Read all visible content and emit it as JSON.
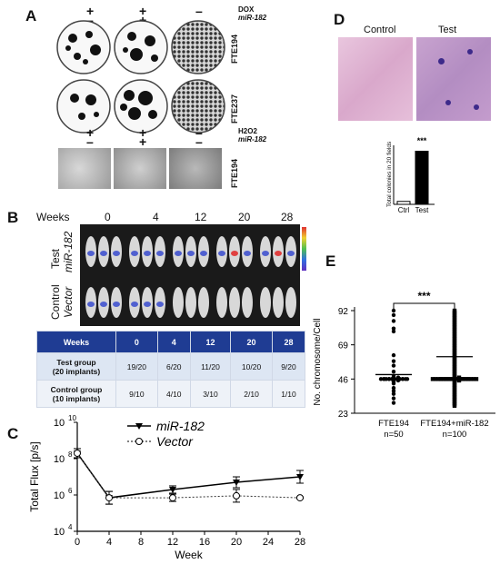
{
  "panels": {
    "A": {
      "label": "A",
      "row_labels": [
        "FTE194",
        "FTE237",
        "FTE194"
      ],
      "legend1": {
        "line1": "DOX",
        "line2": "miR-182"
      },
      "legend2": {
        "line1": "H2O2",
        "line2": "miR-182"
      },
      "signs_top": [
        "+",
        "+",
        "–"
      ],
      "signs_mid": [
        "–",
        "+",
        "–"
      ],
      "signs_h2o2_top": [
        "+",
        "+",
        "–"
      ],
      "signs_h2o2_mid": [
        "–",
        "+",
        "–"
      ]
    },
    "B": {
      "label": "B",
      "weeks_label": "Weeks",
      "weeks": [
        "0",
        "4",
        "12",
        "20",
        "28"
      ],
      "row1_label": {
        "line1": "Test",
        "line2": "miR-182"
      },
      "row2_label": {
        "line1": "Control",
        "line2": "Vector"
      },
      "table": {
        "header": [
          "Weeks",
          "0",
          "4",
          "12",
          "20",
          "28"
        ],
        "rows": [
          {
            "label1": "Test group",
            "label2": "(20 implants)",
            "values": [
              "19/20",
              "6/20",
              "11/20",
              "10/20",
              "9/20"
            ]
          },
          {
            "label1": "Control group",
            "label2": "(10 implants)",
            "values": [
              "9/10",
              "4/10",
              "3/10",
              "2/10",
              "1/10"
            ]
          }
        ]
      }
    },
    "C": {
      "label": "C"
    },
    "D": {
      "label": "D",
      "header_left": "Control",
      "header_right": "Test"
    },
    "E": {
      "label": "E"
    }
  },
  "chart_data": [
    {
      "type": "line",
      "panel": "C",
      "xlabel": "Week",
      "ylabel": "Total Flux [p/s]",
      "x_ticks": [
        0,
        4,
        8,
        12,
        16,
        20,
        24,
        28
      ],
      "y_scale": "log",
      "y_ticks": [
        "10^4",
        "10^6",
        "10^8",
        "10^10"
      ],
      "xlim": [
        0,
        28
      ],
      "ylim_log10": [
        4,
        10
      ],
      "legend_position": "top-center",
      "series": [
        {
          "name": "miR-182",
          "style": "solid",
          "marker": "filled-triangle",
          "x": [
            0,
            4,
            12,
            20,
            28
          ],
          "y": [
            200000000,
            700000,
            2000000,
            5000000,
            10000000
          ],
          "err_log10": [
            0.25,
            0.35,
            0.2,
            0.3,
            0.35
          ]
        },
        {
          "name": "Vector",
          "style": "dotted",
          "marker": "open-circle",
          "x": [
            0,
            4,
            12,
            20,
            28
          ],
          "y": [
            200000000,
            700000,
            700000,
            900000,
            700000
          ],
          "err_log10": [
            0.25,
            0.35,
            0.2,
            0.35,
            0.05
          ]
        }
      ]
    },
    {
      "type": "bar",
      "panel": "D",
      "ylabel": "Total colonies in 20 fields",
      "categories": [
        "Ctrl",
        "Test"
      ],
      "values": [
        1,
        18
      ],
      "ylim": [
        0,
        20
      ],
      "annotation": "***"
    },
    {
      "type": "scatter",
      "panel": "E",
      "ylabel": "No. chromosome/Cell",
      "y_ticks": [
        23,
        46,
        69,
        92
      ],
      "ylim": [
        23,
        92
      ],
      "annotation": "***",
      "groups": [
        {
          "name": "FTE194",
          "n_label": "n=50",
          "mean": 49,
          "values": [
            92,
            89,
            85,
            80,
            78,
            62,
            58,
            55,
            51,
            48,
            47,
            47,
            46,
            46,
            46,
            46,
            46,
            46,
            45,
            45,
            44,
            43,
            40,
            38,
            36,
            33,
            30
          ]
        },
        {
          "name": "FTE194+miR-182",
          "n_label": "n=100",
          "mean": 61,
          "values": [
            92,
            91,
            90,
            89,
            88,
            87,
            86,
            85,
            84,
            83,
            82,
            81,
            80,
            79,
            78,
            77,
            76,
            75,
            74,
            73,
            72,
            71,
            70,
            69,
            68,
            67,
            66,
            65,
            64,
            63,
            62,
            61,
            60,
            59,
            58,
            57,
            56,
            55,
            54,
            53,
            52,
            51,
            50,
            49,
            48,
            47,
            47,
            46,
            46,
            46,
            46,
            46,
            46,
            46,
            45,
            45,
            44,
            43,
            42,
            41,
            40,
            39,
            38,
            37,
            36,
            35,
            34,
            33,
            32,
            31,
            30,
            29,
            28
          ]
        }
      ]
    }
  ]
}
